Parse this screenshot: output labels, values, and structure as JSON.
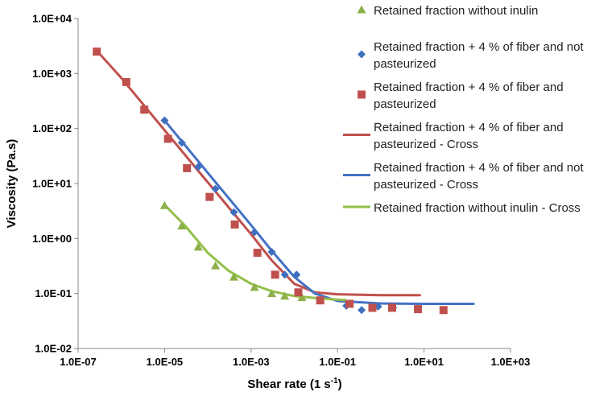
{
  "chart_data": {
    "type": "scatter",
    "title": "",
    "xlabel": "Shear rate (1 s",
    "xlabel_sup": "-1",
    "xlabel_close": ")",
    "ylabel": "Viscosity (Pa.s)",
    "x_scale": "log",
    "y_scale": "log",
    "xlim": [
      1e-07,
      1000
    ],
    "ylim": [
      0.01,
      10000
    ],
    "x_tick_values": [
      1e-07,
      1e-05,
      0.001,
      0.1,
      10,
      1000
    ],
    "x_tick_labels": [
      "1.0E-07",
      "1.0E-05",
      "1.0E-03",
      "1.0E-01",
      "1.0E+01",
      "1.0E+03"
    ],
    "y_tick_values": [
      0.01,
      0.1,
      1,
      10,
      100,
      1000,
      10000
    ],
    "y_tick_labels": [
      "1.0E-02",
      "1.0E-01",
      "1.0E+00",
      "1.0E+01",
      "1.0E+02",
      "1.0E+03",
      "1.0E+04"
    ],
    "grid": false,
    "legend_position": "top-right",
    "series": [
      {
        "name": "Retained fraction without inulin",
        "kind": "marker",
        "marker": "triangle",
        "color": "#8db04a",
        "x": [
          1e-05,
          2.5e-05,
          6e-05,
          0.00015,
          0.0004,
          0.0012,
          0.003,
          0.006,
          0.015
        ],
        "y": [
          4.0,
          1.7,
          0.7,
          0.32,
          0.2,
          0.13,
          0.1,
          0.09,
          0.085
        ]
      },
      {
        "name": "Retained fraction + 4 % of fiber and not pasteurized",
        "kind": "marker",
        "marker": "diamond",
        "color": "#3f6fbf",
        "x": [
          1e-05,
          2.5e-05,
          6e-05,
          0.00015,
          0.0004,
          0.0012,
          0.003,
          0.006,
          0.0113,
          0.16,
          0.36,
          0.87,
          1.93
        ],
        "y": [
          140,
          55,
          20,
          8,
          3,
          1.3,
          0.57,
          0.22,
          0.22,
          0.06,
          0.05,
          0.058,
          0.055
        ]
      },
      {
        "name": "Retained fraction + 4 % of fiber and pasteurized",
        "kind": "marker",
        "marker": "square",
        "color": "#c0504d",
        "x": [
          2.7e-07,
          1.3e-06,
          3.4e-06,
          1.2e-05,
          3.3e-05,
          0.00011,
          0.00042,
          0.0014,
          0.0036,
          0.0124,
          0.0397,
          0.19,
          0.64,
          1.83,
          7.23,
          28.2
        ],
        "y": [
          2500,
          700,
          220,
          65,
          19,
          5.7,
          1.8,
          0.55,
          0.22,
          0.105,
          0.075,
          0.065,
          0.055,
          0.055,
          0.052,
          0.05
        ]
      },
      {
        "name": "Retained fraction + 4 % of fiber and pasteurized - Cross",
        "kind": "line",
        "color": "#c0504d",
        "x": [
          2.7e-07,
          1e-06,
          1e-05,
          0.0001,
          0.001,
          0.003,
          0.01,
          0.03,
          0.1,
          1,
          8
        ],
        "y": [
          2600,
          830,
          93,
          10.5,
          1.2,
          0.4,
          0.15,
          0.105,
          0.097,
          0.093,
          0.093
        ]
      },
      {
        "name": "Retained fraction + 4 % of fiber and not pasteurized - Cross",
        "kind": "line",
        "color": "#4472c4",
        "x": [
          1e-05,
          0.0001,
          0.001,
          0.003,
          0.01,
          0.03,
          0.1,
          1,
          10,
          140
        ],
        "y": [
          140,
          15.6,
          1.75,
          0.6,
          0.2,
          0.1,
          0.073,
          0.066,
          0.065,
          0.065
        ]
      },
      {
        "name": "Retained fraction without inulin - Cross",
        "kind": "line",
        "color": "#92c049",
        "x": [
          1e-05,
          3e-05,
          0.0001,
          0.0003,
          0.001,
          0.003,
          0.01,
          0.03,
          0.08,
          0.15
        ],
        "y": [
          4.1,
          1.7,
          0.55,
          0.26,
          0.15,
          0.11,
          0.09,
          0.083,
          0.078,
          0.076
        ]
      }
    ],
    "legend": [
      {
        "series": 0,
        "lines": [
          "Retained fraction without inulin"
        ]
      },
      {
        "series": 1,
        "lines": [
          "Retained fraction + 4 % of fiber and not",
          "pasteurized"
        ]
      },
      {
        "series": 2,
        "lines": [
          "Retained fraction + 4 % of fiber and",
          "pasteurized"
        ]
      },
      {
        "series": 3,
        "lines": [
          "Retained fraction + 4 % of fiber and",
          "pasteurized - Cross"
        ]
      },
      {
        "series": 4,
        "lines": [
          "Retained fraction + 4 % of fiber and not",
          "pasteurized - Cross"
        ]
      },
      {
        "series": 5,
        "lines": [
          "Retained fraction without inulin - Cross"
        ]
      }
    ]
  }
}
